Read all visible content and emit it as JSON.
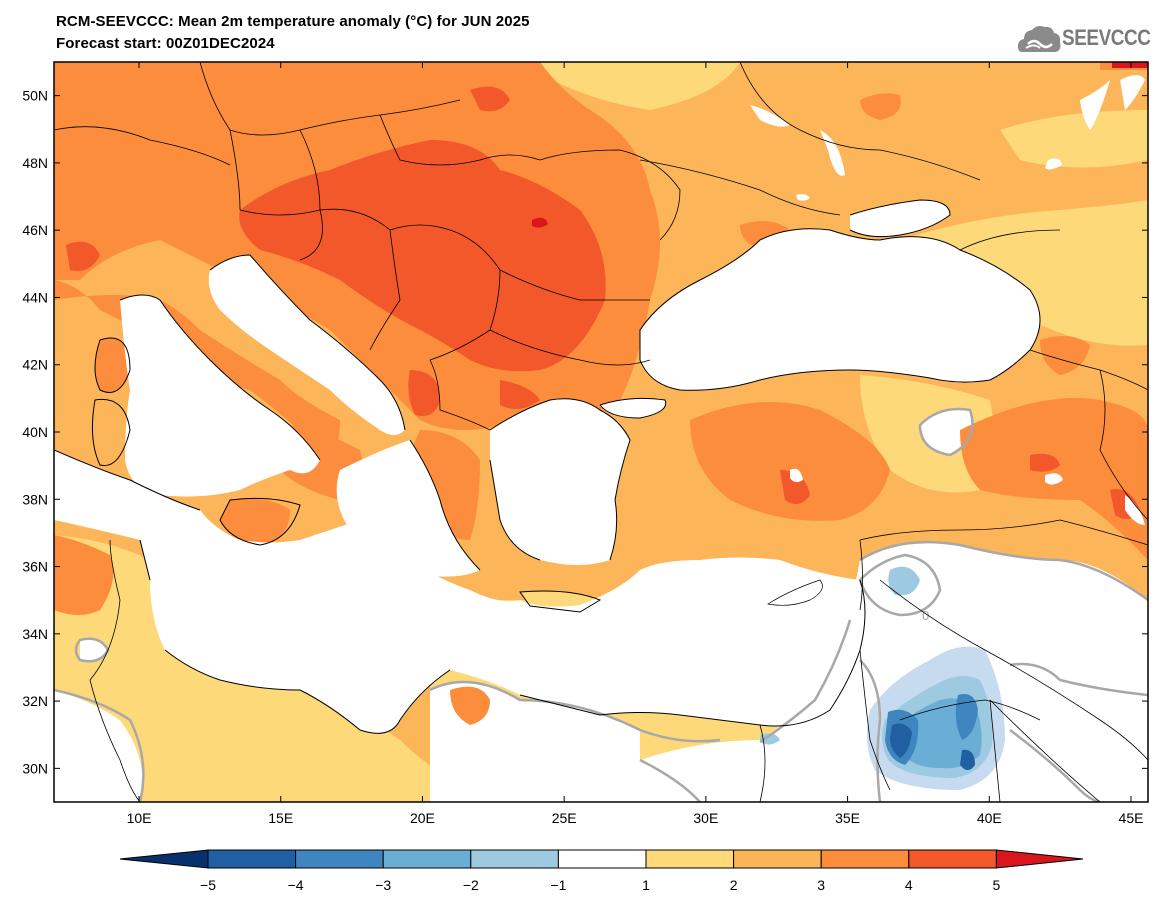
{
  "title": {
    "line1": "RCM-SEEVCCC: Mean 2m temperature anomaly (°C) for JUN 2025",
    "line2": "Forecast start: 00Z01DEC2024"
  },
  "logo": {
    "text": "SEEVCCC",
    "icon": "cloud-icon"
  },
  "map": {
    "lon_range": [
      7,
      45.6
    ],
    "lat_range": [
      29,
      51
    ],
    "lat_ticks": [
      {
        "value": 50,
        "label": "50N"
      },
      {
        "value": 48,
        "label": "48N"
      },
      {
        "value": 46,
        "label": "46N"
      },
      {
        "value": 44,
        "label": "44N"
      },
      {
        "value": 42,
        "label": "42N"
      },
      {
        "value": 40,
        "label": "40N"
      },
      {
        "value": 38,
        "label": "38N"
      },
      {
        "value": 36,
        "label": "36N"
      },
      {
        "value": 34,
        "label": "34N"
      },
      {
        "value": 32,
        "label": "32N"
      },
      {
        "value": 30,
        "label": "30N"
      }
    ],
    "lon_ticks": [
      {
        "value": 10,
        "label": "10E"
      },
      {
        "value": 15,
        "label": "15E"
      },
      {
        "value": 20,
        "label": "20E"
      },
      {
        "value": 25,
        "label": "25E"
      },
      {
        "value": 30,
        "label": "30E"
      },
      {
        "value": 35,
        "label": "35E"
      },
      {
        "value": 40,
        "label": "40E"
      },
      {
        "value": 45,
        "label": "45E"
      }
    ],
    "zero_contour_label": "0"
  },
  "colorbar": {
    "labels": [
      "−5",
      "−4",
      "−3",
      "−2",
      "−1",
      "1",
      "2",
      "3",
      "4",
      "5"
    ],
    "colors": {
      "below": "#08306b",
      "bins": [
        "#1f5fa2",
        "#3f86c0",
        "#6aaed6",
        "#9ecae1",
        "#ffffff",
        "#fdd97a",
        "#fdb55a",
        "#fc8d3c",
        "#f2582a"
      ],
      "above": "#d9161c"
    }
  }
}
